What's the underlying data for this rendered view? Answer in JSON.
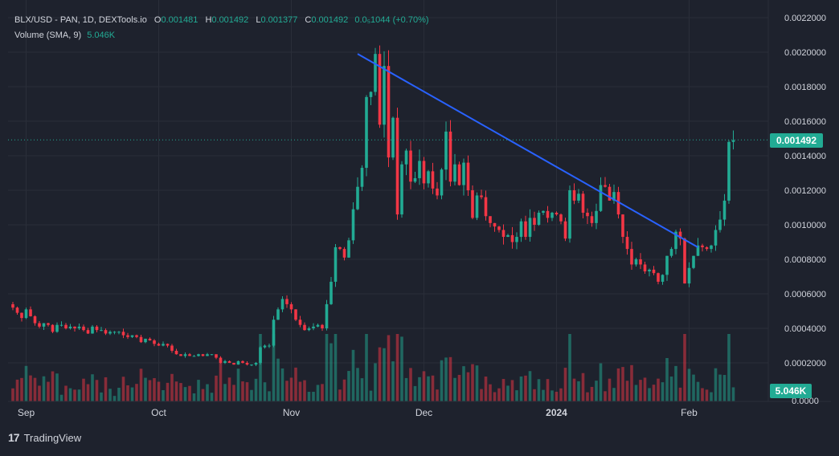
{
  "legend": {
    "symbol": "BLX/USD - PAN, 1D, DEXTools.io",
    "o_label": "O",
    "o_value": "0.001481",
    "h_label": "H",
    "h_value": "0.001492",
    "l_label": "L",
    "l_value": "0.001377",
    "c_label": "C",
    "c_value": "0.001492",
    "change": "0.0₅1044 (+0.70%)",
    "volume_label": "Volume (SMA, 9)",
    "volume_value": "5.046K"
  },
  "branding": {
    "logo_text": "TradingView",
    "logo_mark": "17"
  },
  "colors": {
    "background": "#1e222d",
    "up": "#22ab94",
    "down": "#f23645",
    "trendline": "#2962ff",
    "grid": "#2a2e39",
    "text": "#d1d4dc"
  },
  "chart_data": {
    "type": "candlestick",
    "price_axis": {
      "ticks": [
        0.0002,
        0.0004,
        0.0006,
        0.0008,
        0.001,
        0.0012,
        0.0014,
        0.0016,
        0.0018,
        0.002,
        0.0022
      ],
      "tick_labels": [
        "0.0002000",
        "0.0004000",
        "0.0006000",
        "0.0008000",
        "0.0010000",
        "0.0012000",
        "0.0014000",
        "0.0016000",
        "0.0018000",
        "0.0020000",
        "0.0022000"
      ],
      "bottom_label": "0.0000",
      "range": [
        0,
        0.0022
      ]
    },
    "time_axis": {
      "labels": [
        "Sep",
        "Oct",
        "Nov",
        "Dec",
        "2024",
        "Feb"
      ],
      "label_indices": [
        3,
        33,
        63,
        93,
        123,
        153
      ]
    },
    "last_price": 0.001492,
    "last_price_label": "0.001492",
    "last_volume_label": "5.046K",
    "close": [
      0.00052,
      0.00049,
      0.00046,
      0.00051,
      0.00047,
      0.00043,
      0.00041,
      0.00043,
      0.00042,
      0.00038,
      0.00042,
      0.00042,
      0.0004,
      0.00041,
      0.0004,
      0.00041,
      0.00039,
      0.00037,
      0.00041,
      0.00039,
      0.00039,
      0.00037,
      0.00038,
      0.00038,
      0.00038,
      0.00036,
      0.00035,
      0.00036,
      0.00035,
      0.00032,
      0.00034,
      0.00033,
      0.00031,
      0.0003,
      0.00031,
      0.0003,
      0.00027,
      0.00025,
      0.00024,
      0.00025,
      0.00024,
      0.00024,
      0.00025,
      0.00024,
      0.00025,
      0.00025,
      0.00023,
      0.0002,
      0.00021,
      0.0002,
      0.00019,
      0.00021,
      0.0002,
      0.00019,
      0.00019,
      0.0002,
      0.00029,
      0.0003,
      0.0003,
      0.00045,
      0.00051,
      0.00057,
      0.00054,
      0.00051,
      0.00045,
      0.00042,
      0.00039,
      0.0004,
      0.00041,
      0.00042,
      0.0004,
      0.00054,
      0.00067,
      0.00087,
      0.00086,
      0.00081,
      0.00091,
      0.00109,
      0.00122,
      0.00133,
      0.00174,
      0.00177,
      0.00199,
      0.00158,
      0.00192,
      0.00139,
      0.00162,
      0.00106,
      0.00135,
      0.00143,
      0.00125,
      0.00127,
      0.00137,
      0.00124,
      0.00131,
      0.00121,
      0.00117,
      0.00132,
      0.00154,
      0.00125,
      0.00135,
      0.00123,
      0.00136,
      0.0012,
      0.00104,
      0.00117,
      0.00116,
      0.00105,
      0.00101,
      0.00099,
      0.00097,
      0.00093,
      0.00094,
      0.0009,
      0.00093,
      0.00102,
      0.00093,
      0.00104,
      0.001,
      0.00107,
      0.00108,
      0.00104,
      0.00107,
      0.00106,
      0.00102,
      0.00092,
      0.0012,
      0.00114,
      0.00118,
      0.00107,
      0.00105,
      0.00101,
      0.00108,
      0.00123,
      0.00122,
      0.00114,
      0.00119,
      0.00106,
      0.00093,
      0.00086,
      0.00077,
      0.0008,
      0.00077,
      0.00073,
      0.00074,
      0.00072,
      0.00067,
      0.00071,
      0.00082,
      0.00086,
      0.00096,
      0.00092,
      0.00066,
      0.00075,
      0.00082,
      0.00088,
      0.00087,
      0.00086,
      0.00088,
      0.00097,
      0.00103,
      0.00114,
      0.00148,
      0.00149
    ]
  }
}
